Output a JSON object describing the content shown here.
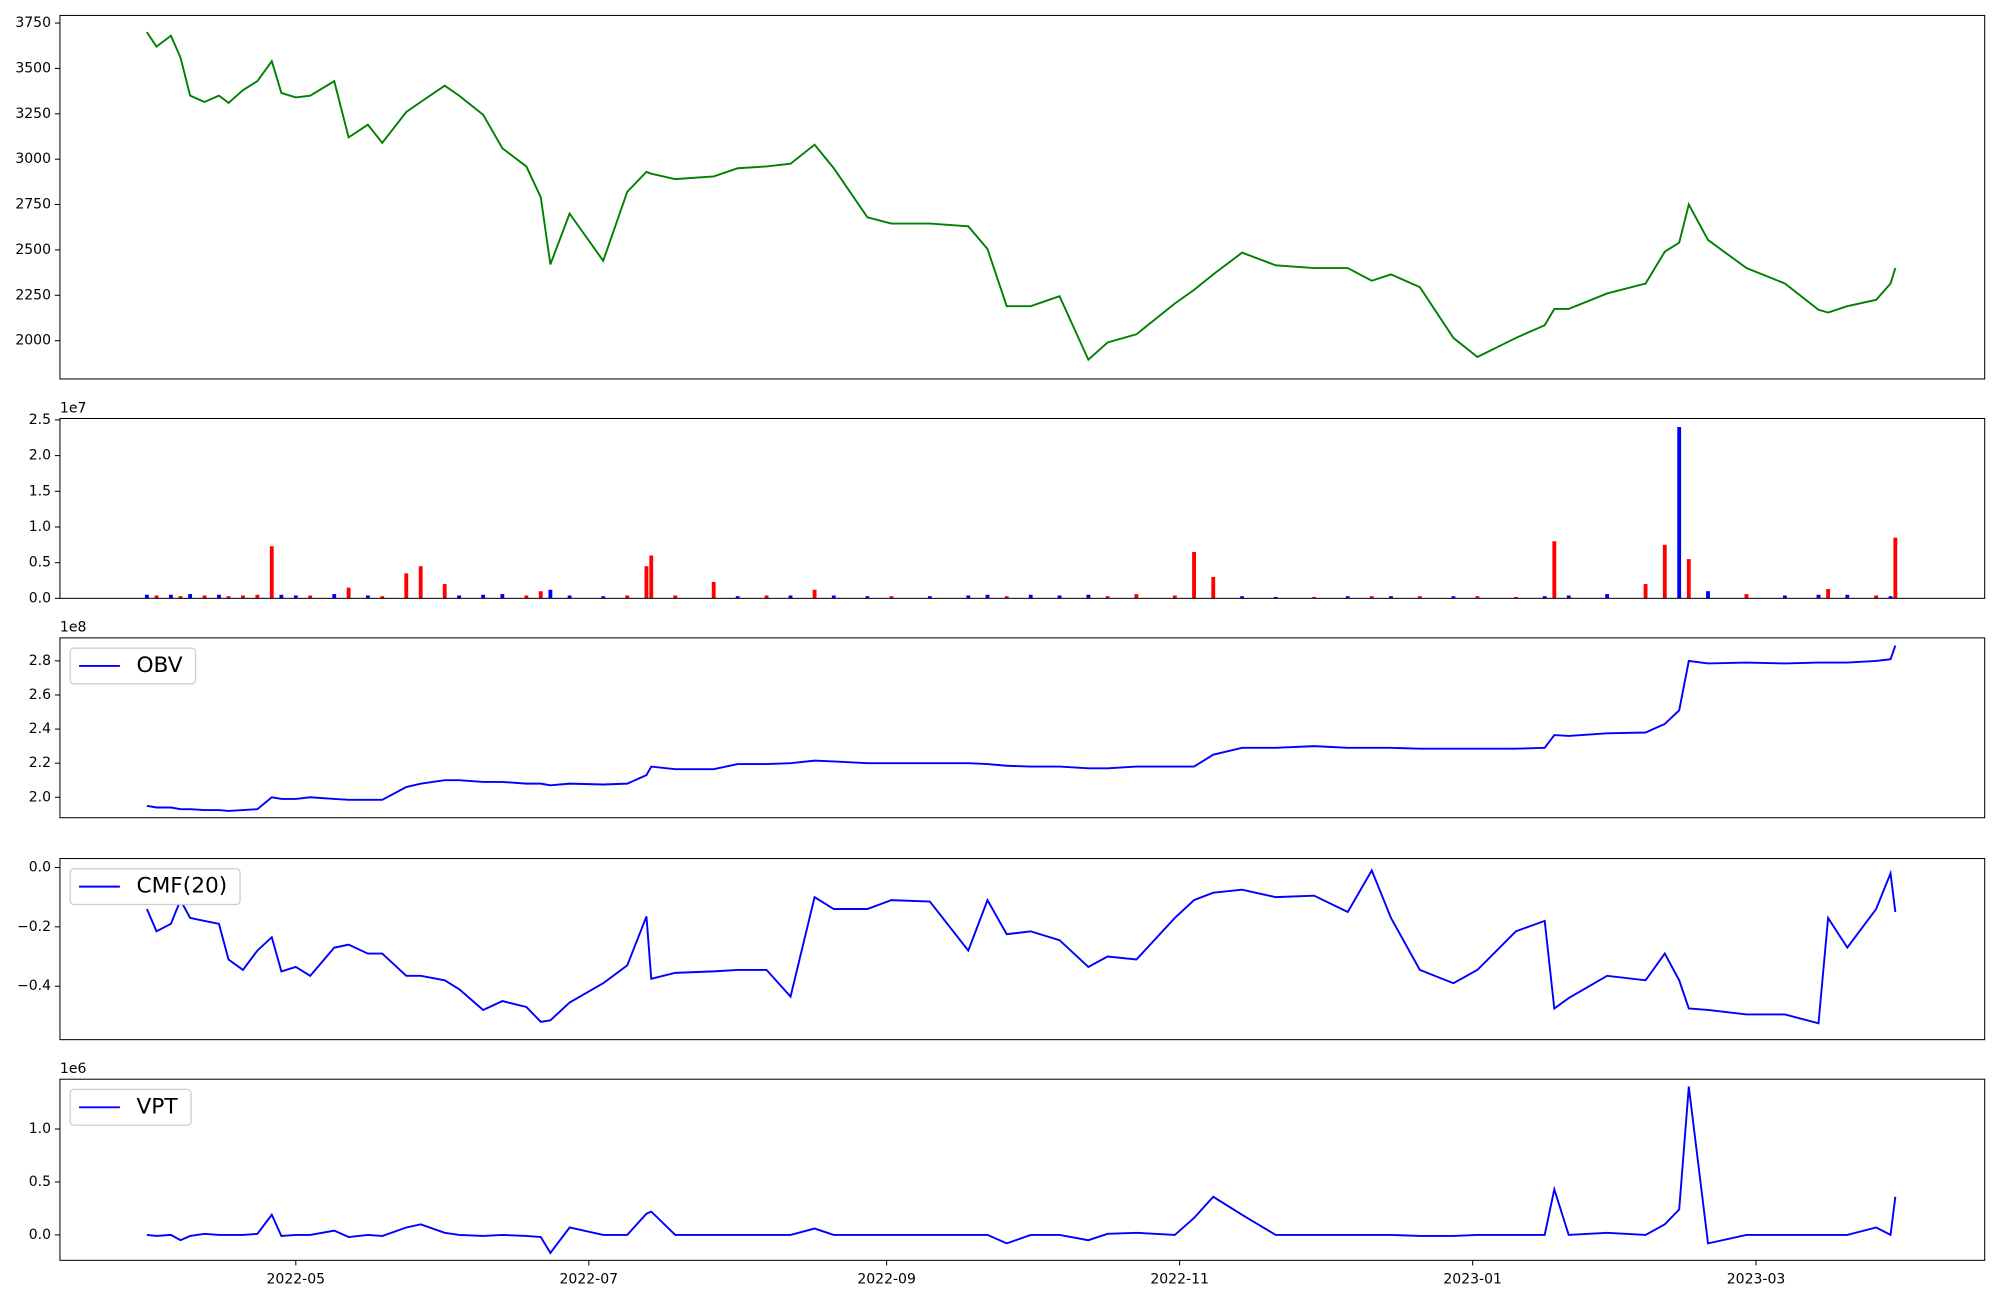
{
  "chart_data": [
    {
      "type": "line",
      "color": "#008000",
      "x": [
        -1,
        1,
        4,
        6,
        8,
        11,
        14,
        16,
        19,
        22,
        25,
        27,
        30,
        33,
        38,
        41,
        45,
        48,
        53,
        56,
        61,
        64,
        69,
        73,
        78,
        81,
        83,
        87,
        94,
        99,
        103,
        104,
        109,
        117,
        122,
        128,
        133,
        138,
        142,
        149,
        154,
        162,
        170,
        174,
        178,
        183,
        189,
        195,
        199,
        205,
        213,
        217,
        221,
        227,
        234,
        242,
        249,
        254,
        258,
        264,
        271,
        276,
        284,
        290,
        292,
        295,
        303,
        311,
        315,
        318,
        320,
        324,
        332,
        340,
        347,
        349,
        353,
        359,
        362,
        363
      ],
      "values": [
        3700,
        3620,
        3680,
        3560,
        3350,
        3315,
        3350,
        3310,
        3380,
        3430,
        3540,
        3365,
        3340,
        3350,
        3430,
        3120,
        3190,
        3090,
        3260,
        3315,
        3405,
        3350,
        3245,
        3060,
        2960,
        2790,
        2420,
        2700,
        2440,
        2820,
        2930,
        2920,
        2890,
        2905,
        2950,
        2960,
        2975,
        3080,
        2950,
        2680,
        2645,
        2645,
        2630,
        2505,
        2190,
        2190,
        2245,
        1895,
        1990,
        2035,
        2205,
        2280,
        2365,
        2485,
        2415,
        2400,
        2400,
        2330,
        2365,
        2295,
        2015,
        1910,
        2015,
        2085,
        2175,
        2175,
        2260,
        2315,
        2490,
        2540,
        2750,
        2555,
        2400,
        2315,
        2170,
        2155,
        2190,
        2225,
        2315,
        2400
      ],
      "xlim": [
        -19.1,
        381.6
      ],
      "ylim": [
        1789,
        3792
      ],
      "yticks": [
        2000,
        2250,
        2500,
        2750,
        3000,
        3250,
        3500,
        3750
      ]
    },
    {
      "type": "bar",
      "offset_label": "1e7",
      "x": [
        -1,
        1,
        4,
        6,
        8,
        11,
        14,
        16,
        19,
        22,
        25,
        27,
        30,
        33,
        38,
        41,
        45,
        48,
        53,
        56,
        61,
        64,
        69,
        73,
        78,
        81,
        83,
        87,
        94,
        99,
        103,
        104,
        109,
        117,
        122,
        128,
        133,
        138,
        142,
        149,
        154,
        162,
        170,
        174,
        178,
        183,
        189,
        195,
        199,
        205,
        213,
        217,
        221,
        227,
        234,
        242,
        249,
        254,
        258,
        264,
        271,
        276,
        284,
        290,
        292,
        295,
        303,
        311,
        315,
        318,
        320,
        324,
        332,
        340,
        347,
        349,
        353,
        359,
        362,
        363
      ],
      "values": [
        0.05,
        0.04,
        0.05,
        0.03,
        0.06,
        0.04,
        0.05,
        0.03,
        0.04,
        0.05,
        0.73,
        0.05,
        0.04,
        0.04,
        0.06,
        0.15,
        0.04,
        0.03,
        0.35,
        0.45,
        0.2,
        0.04,
        0.05,
        0.06,
        0.04,
        0.1,
        0.12,
        0.04,
        0.03,
        0.04,
        0.45,
        0.6,
        0.04,
        0.23,
        0.03,
        0.04,
        0.04,
        0.12,
        0.04,
        0.03,
        0.03,
        0.03,
        0.04,
        0.05,
        0.03,
        0.05,
        0.04,
        0.05,
        0.03,
        0.06,
        0.04,
        0.65,
        0.3,
        0.03,
        0.02,
        0.02,
        0.03,
        0.03,
        0.03,
        0.03,
        0.03,
        0.03,
        0.02,
        0.03,
        0.8,
        0.04,
        0.06,
        0.2,
        0.75,
        2.4,
        0.55,
        0.1,
        0.06,
        0.04,
        0.05,
        0.13,
        0.05,
        0.04,
        0.03,
        0.85
      ],
      "colors": [
        "blue",
        "red",
        "blue",
        "red",
        "blue",
        "red",
        "blue",
        "red",
        "red",
        "red",
        "red",
        "blue",
        "blue",
        "red",
        "blue",
        "red",
        "blue",
        "red",
        "red",
        "red",
        "red",
        "blue",
        "blue",
        "blue",
        "red",
        "red",
        "blue",
        "blue",
        "blue",
        "red",
        "red",
        "red",
        "red",
        "red",
        "blue",
        "red",
        "blue",
        "red",
        "blue",
        "blue",
        "red",
        "blue",
        "blue",
        "blue",
        "red",
        "blue",
        "blue",
        "blue",
        "red",
        "red",
        "red",
        "red",
        "red",
        "blue",
        "blue",
        "red",
        "blue",
        "red",
        "blue",
        "red",
        "blue",
        "red",
        "red",
        "blue",
        "red",
        "blue",
        "blue",
        "red",
        "red",
        "blue",
        "red",
        "blue",
        "red",
        "blue",
        "blue",
        "red",
        "blue",
        "red",
        "blue",
        "red"
      ],
      "xlim": [
        -19.1,
        381.6
      ],
      "ylim": [
        0,
        2.52
      ],
      "yticks": [
        {
          "value": 0,
          "label": "0.0"
        },
        {
          "value": 0.5,
          "label": "0.5"
        },
        {
          "value": 1,
          "label": "1.0"
        },
        {
          "value": 1.5,
          "label": "1.5"
        },
        {
          "value": 2,
          "label": "2.0"
        },
        {
          "value": 2.5,
          "label": "2.5"
        }
      ]
    },
    {
      "type": "line",
      "offset_label": "1e8",
      "legend": "upper left",
      "x": [
        -1,
        1,
        4,
        6,
        8,
        11,
        14,
        16,
        19,
        22,
        25,
        27,
        30,
        33,
        38,
        41,
        45,
        48,
        53,
        56,
        61,
        64,
        69,
        73,
        78,
        81,
        83,
        87,
        94,
        99,
        103,
        104,
        109,
        117,
        122,
        128,
        133,
        138,
        142,
        149,
        154,
        162,
        170,
        174,
        178,
        183,
        189,
        195,
        199,
        205,
        213,
        217,
        221,
        227,
        234,
        242,
        249,
        254,
        258,
        264,
        271,
        276,
        284,
        290,
        292,
        295,
        303,
        311,
        315,
        318,
        320,
        324,
        332,
        340,
        347,
        349,
        353,
        359,
        362,
        363
      ],
      "series": [
        {
          "name": "OBV",
          "color": "#0000ff",
          "values": [
            1.95,
            1.94,
            1.94,
            1.93,
            1.93,
            1.925,
            1.925,
            1.92,
            1.925,
            1.93,
            2.0,
            1.99,
            1.99,
            2.0,
            1.99,
            1.985,
            1.985,
            1.985,
            2.06,
            2.08,
            2.1,
            2.1,
            2.09,
            2.09,
            2.08,
            2.08,
            2.07,
            2.08,
            2.075,
            2.08,
            2.13,
            2.18,
            2.165,
            2.165,
            2.195,
            2.195,
            2.2,
            2.215,
            2.21,
            2.2,
            2.2,
            2.2,
            2.2,
            2.195,
            2.185,
            2.18,
            2.18,
            2.17,
            2.17,
            2.18,
            2.18,
            2.18,
            2.25,
            2.29,
            2.29,
            2.3,
            2.29,
            2.29,
            2.29,
            2.285,
            2.285,
            2.285,
            2.285,
            2.29,
            2.365,
            2.36,
            2.375,
            2.38,
            2.43,
            2.51,
            2.8,
            2.785,
            2.79,
            2.785,
            2.79,
            2.79,
            2.79,
            2.8,
            2.81,
            2.89
          ]
        }
      ],
      "xlim": [
        -19.1,
        381.6
      ],
      "ylim": [
        1.88,
        2.935
      ],
      "yticks": [
        {
          "value": 2,
          "label": "2.0"
        },
        {
          "value": 2.2,
          "label": "2.2"
        },
        {
          "value": 2.4,
          "label": "2.4"
        },
        {
          "value": 2.6,
          "label": "2.6"
        },
        {
          "value": 2.8,
          "label": "2.8"
        }
      ]
    },
    {
      "type": "line",
      "legend": "upper left",
      "x": [
        -1,
        1,
        4,
        6,
        8,
        11,
        14,
        16,
        19,
        22,
        25,
        27,
        30,
        33,
        38,
        41,
        45,
        48,
        53,
        56,
        61,
        64,
        69,
        73,
        78,
        81,
        83,
        87,
        94,
        99,
        103,
        104,
        109,
        117,
        122,
        128,
        133,
        138,
        142,
        149,
        154,
        162,
        170,
        174,
        178,
        183,
        189,
        195,
        199,
        205,
        213,
        217,
        221,
        227,
        234,
        242,
        249,
        254,
        258,
        264,
        271,
        276,
        284,
        290,
        292,
        295,
        303,
        311,
        315,
        318,
        320,
        324,
        332,
        340,
        347,
        349,
        353,
        359,
        362,
        363
      ],
      "series": [
        {
          "name": "CMF(20)",
          "color": "#0000ff",
          "values": [
            -0.14,
            -0.215,
            -0.19,
            -0.11,
            -0.17,
            -0.18,
            -0.19,
            -0.31,
            -0.345,
            -0.28,
            -0.235,
            -0.35,
            -0.335,
            -0.365,
            -0.27,
            -0.26,
            -0.29,
            -0.29,
            -0.365,
            -0.365,
            -0.38,
            -0.41,
            -0.48,
            -0.45,
            -0.47,
            -0.52,
            -0.515,
            -0.455,
            -0.39,
            -0.33,
            -0.165,
            -0.375,
            -0.355,
            -0.35,
            -0.345,
            -0.345,
            -0.435,
            -0.1,
            -0.14,
            -0.14,
            -0.11,
            -0.115,
            -0.28,
            -0.11,
            -0.225,
            -0.215,
            -0.245,
            -0.335,
            -0.3,
            -0.31,
            -0.17,
            -0.11,
            -0.085,
            -0.075,
            -0.1,
            -0.095,
            -0.15,
            -0.01,
            -0.17,
            -0.345,
            -0.39,
            -0.345,
            -0.215,
            -0.18,
            -0.475,
            -0.44,
            -0.365,
            -0.38,
            -0.29,
            -0.38,
            -0.475,
            -0.48,
            -0.495,
            -0.495,
            -0.525,
            -0.17,
            -0.27,
            -0.14,
            -0.02,
            -0.15
          ]
        }
      ],
      "xlim": [
        -19.1,
        381.6
      ],
      "ylim": [
        -0.58,
        0.03
      ],
      "yticks": [
        {
          "value": -0.4,
          "label": "−0.4"
        },
        {
          "value": -0.2,
          "label": "−0.2"
        },
        {
          "value": 0,
          "label": "0.0"
        }
      ]
    },
    {
      "type": "line",
      "offset_label": "1e6",
      "legend": "upper left",
      "x": [
        -1,
        1,
        4,
        6,
        8,
        11,
        14,
        16,
        19,
        22,
        25,
        27,
        30,
        33,
        38,
        41,
        45,
        48,
        53,
        56,
        61,
        64,
        69,
        73,
        78,
        81,
        83,
        87,
        94,
        99,
        103,
        104,
        109,
        117,
        122,
        128,
        133,
        138,
        142,
        149,
        154,
        162,
        170,
        174,
        178,
        183,
        189,
        195,
        199,
        205,
        213,
        217,
        221,
        227,
        234,
        242,
        249,
        254,
        258,
        264,
        271,
        276,
        284,
        290,
        292,
        295,
        303,
        311,
        315,
        318,
        320,
        324,
        332,
        340,
        347,
        349,
        353,
        359,
        362,
        363
      ],
      "series": [
        {
          "name": "VPT",
          "color": "#0000ff",
          "values": [
            0,
            -0.01,
            0,
            -0.05,
            -0.01,
            0.01,
            0,
            0,
            0,
            0.01,
            0.19,
            -0.01,
            0,
            0,
            0.04,
            -0.02,
            0,
            -0.01,
            0.07,
            0.1,
            0.02,
            0,
            -0.01,
            0,
            -0.01,
            -0.02,
            -0.17,
            0.07,
            0,
            0,
            0.2,
            0.22,
            0,
            0,
            0,
            0,
            0,
            0.06,
            0,
            0,
            0,
            0,
            0,
            0,
            -0.08,
            0,
            0,
            -0.05,
            0.01,
            0.02,
            0,
            0.16,
            0.36,
            0.19,
            0,
            0,
            0,
            0,
            0,
            -0.01,
            -0.01,
            0,
            0,
            0,
            0.43,
            0,
            0.02,
            0,
            0.1,
            0.24,
            1.4,
            -0.08,
            0,
            0,
            0,
            0,
            0,
            0.07,
            0,
            0.36
          ]
        }
      ],
      "xlim": [
        -19.1,
        381.6
      ],
      "ylim": [
        -0.24,
        1.47
      ],
      "yticks": [
        {
          "value": 0,
          "label": "0.0"
        },
        {
          "value": 0.5,
          "label": "0.5"
        },
        {
          "value": 1,
          "label": "1.0"
        }
      ],
      "xticks": [
        {
          "value": 30,
          "label": "2022-05"
        },
        {
          "value": 91,
          "label": "2022-07"
        },
        {
          "value": 153,
          "label": "2022-09"
        },
        {
          "value": 214,
          "label": "2022-11"
        },
        {
          "value": 275,
          "label": "2023-01"
        },
        {
          "value": 334,
          "label": "2023-03"
        }
      ]
    }
  ]
}
